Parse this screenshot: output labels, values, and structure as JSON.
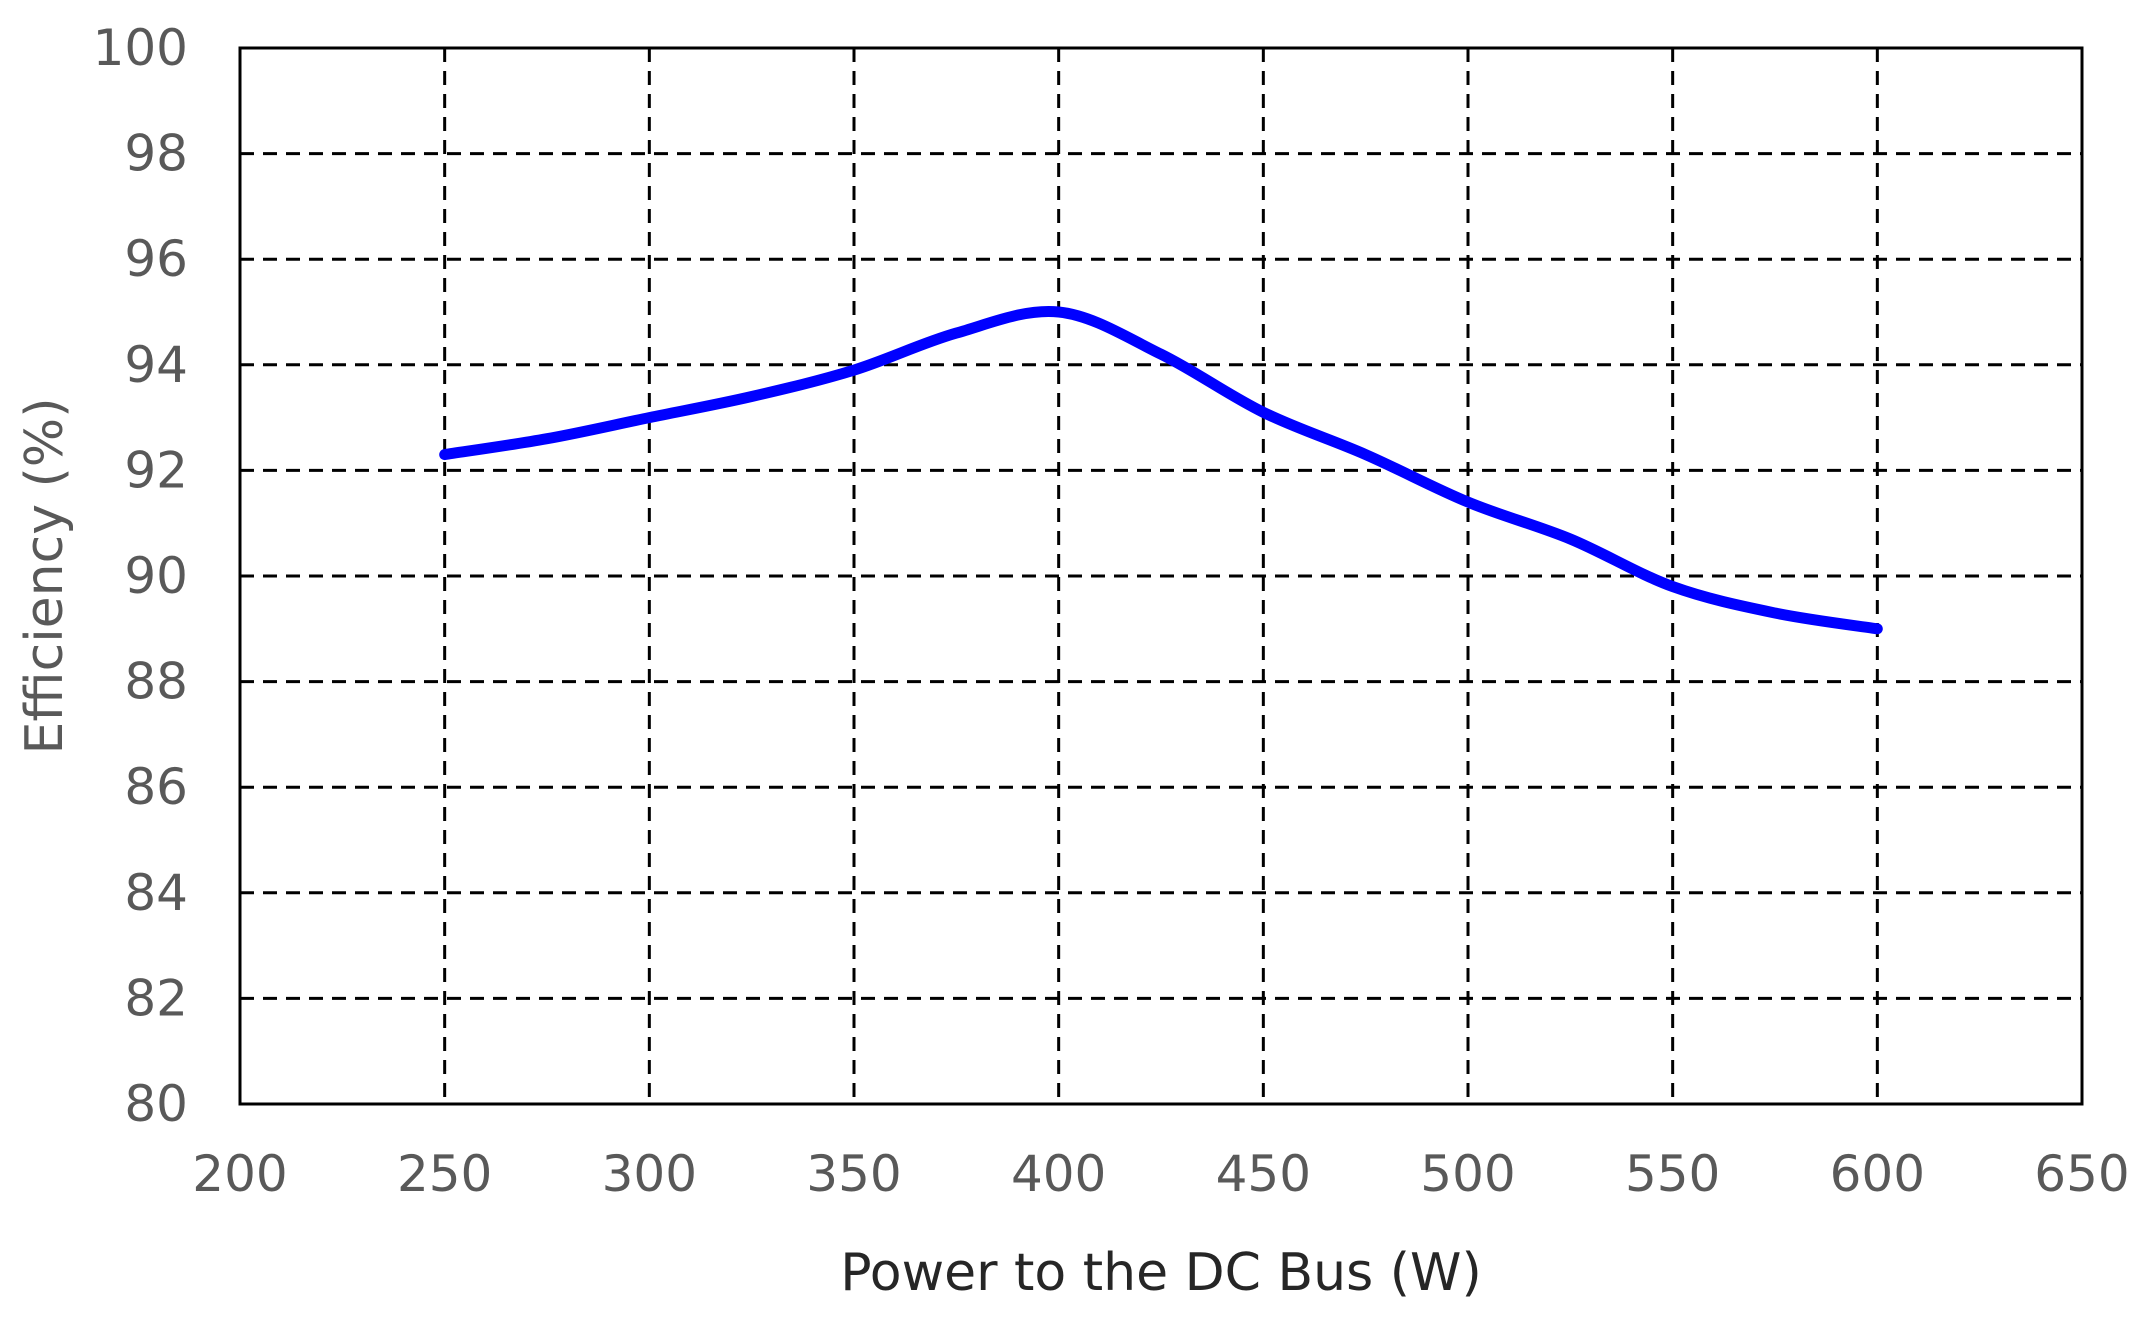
{
  "chart_data": {
    "type": "line",
    "title": "",
    "xlabel": "Power to the DC Bus (W)",
    "ylabel": "Efficiency (%)",
    "xlim": [
      200,
      650
    ],
    "ylim": [
      80,
      100
    ],
    "x_ticks": [
      "200",
      "250",
      "300",
      "350",
      "400",
      "450",
      "500",
      "550",
      "600",
      "650"
    ],
    "y_ticks": [
      "80",
      "82",
      "84",
      "86",
      "88",
      "90",
      "92",
      "94",
      "96",
      "98",
      "100"
    ],
    "grid": true,
    "grid_style": "dashed",
    "series": [
      {
        "color": "#0000ff",
        "x": [
          250,
          275,
          300,
          325,
          350,
          375,
          400,
          425,
          450,
          475,
          500,
          525,
          550,
          575,
          600
        ],
        "y": [
          92.3,
          92.6,
          93.0,
          93.4,
          93.9,
          94.6,
          95.0,
          94.2,
          93.1,
          92.3,
          91.4,
          90.7,
          89.8,
          89.3,
          89.0
        ]
      }
    ]
  }
}
